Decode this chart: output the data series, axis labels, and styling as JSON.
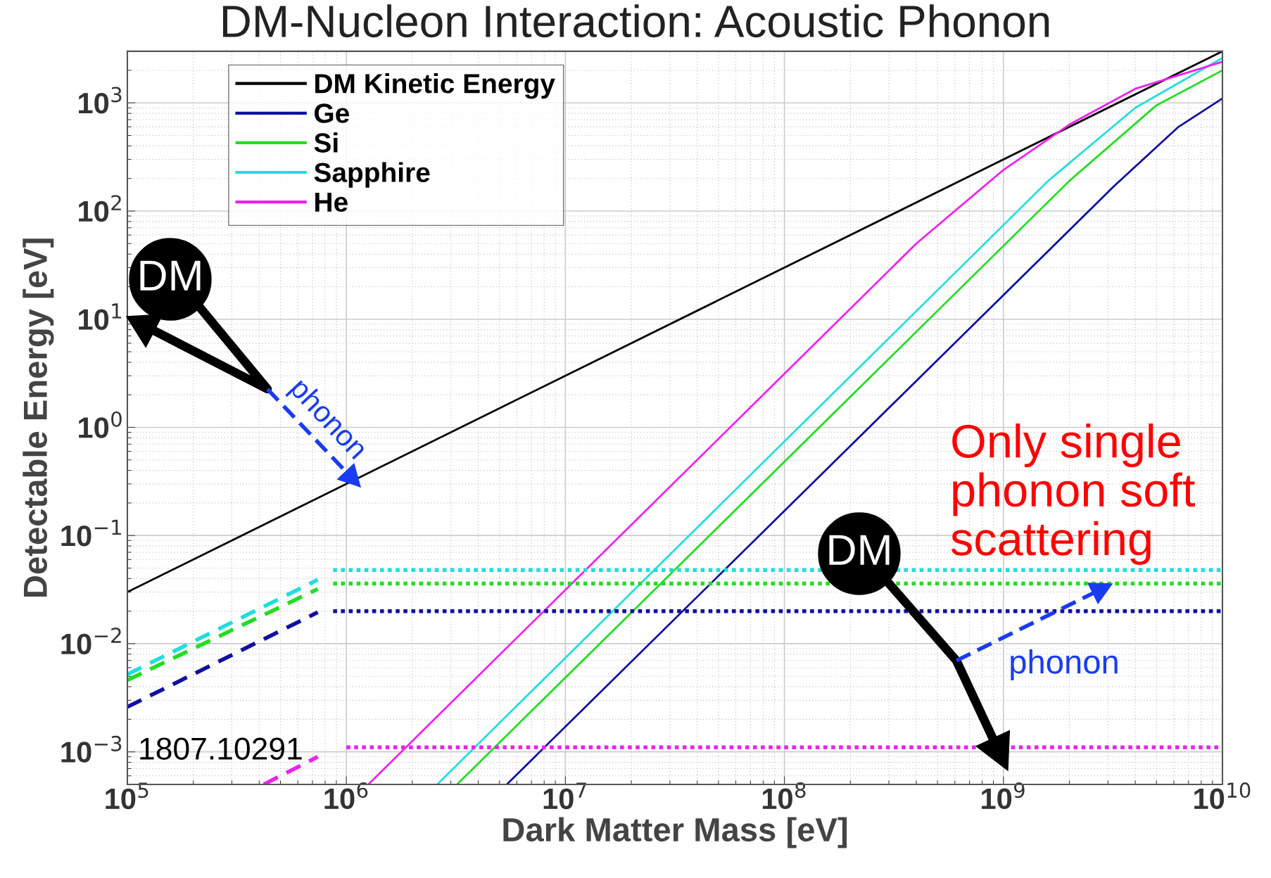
{
  "chart_data": {
    "type": "line",
    "title": "DM-Nucleon Interaction: Acoustic Phonon",
    "xlabel": "Dark Matter Mass [eV]",
    "ylabel": "Detectable Energy [eV]",
    "log": "xy",
    "grid": true,
    "legend": "top left",
    "xlim": [
      100000,
      10000000000
    ],
    "ylim": [
      0.0005,
      3000
    ],
    "xticks": [
      {
        "value": 100000,
        "label": "10$^{5}$"
      },
      {
        "value": 1000000,
        "label": "10$^{6}$"
      },
      {
        "value": 10000000,
        "label": "10$^{7}$"
      },
      {
        "value": 100000000,
        "label": "10$^{8}$"
      },
      {
        "value": 1000000000,
        "label": "10$^{9}$"
      },
      {
        "value": 10000000000,
        "label": "10$^{10}$"
      }
    ],
    "yticks": [
      {
        "value": 0.001,
        "label": "10$^{−3}$"
      },
      {
        "value": 0.01,
        "label": "10$^{−2}$"
      },
      {
        "value": 0.1,
        "label": "10$^{−1}$"
      },
      {
        "value": 1,
        "label": "10$^{0}$"
      },
      {
        "value": 10,
        "label": "10$^{1}$"
      },
      {
        "value": 100,
        "label": "10$^{2}$"
      },
      {
        "value": 1000,
        "label": "10$^{3}$"
      }
    ],
    "annotations": [
      "DM",
      "phonon",
      "DM",
      "phonon",
      "Only single\nphonon soft\nscattering",
      "1807.10291"
    ],
    "series": [
      {
        "name": "DM Kinetic Energy",
        "color": "#000000",
        "line_style": "solid",
        "x": [
          100000,
          10000000000
        ],
        "values": [
          0.03,
          3000
        ]
      },
      {
        "name": "Ge",
        "color": "#1010a0",
        "line_style": "solid",
        "x": [
          5400000,
          3200000000,
          6300000000,
          10000000000
        ],
        "values": [
          0.0005,
          170,
          600,
          1100
        ]
      },
      {
        "name": "Si",
        "color": "#22dd22",
        "line_style": "solid",
        "x": [
          3200000,
          2000000000,
          5000000000,
          10000000000
        ],
        "values": [
          0.0005,
          190,
          950,
          2000
        ]
      },
      {
        "name": "Sapphire",
        "color": "#22dddd",
        "line_style": "solid",
        "x": [
          2600000,
          1600000000,
          4000000000,
          10000000000
        ],
        "values": [
          0.0005,
          190,
          900,
          2600
        ]
      },
      {
        "name": "He",
        "color": "#ee22ee",
        "line_style": "solid",
        "x": [
          1260000,
          400000000,
          1000000000,
          2000000000,
          4000000000,
          10000000000
        ],
        "values": [
          0.0005,
          50,
          240,
          630,
          1350,
          2400
        ]
      },
      {
        "color": "#1010a0",
        "line_style": "dotted",
        "x": [
          870000,
          10000000000
        ],
        "values": [
          0.02,
          0.02
        ]
      },
      {
        "color": "#22dd22",
        "line_style": "dotted",
        "x": [
          870000,
          10000000000
        ],
        "values": [
          0.036,
          0.036
        ]
      },
      {
        "color": "#22dddd",
        "line_style": "dotted",
        "x": [
          870000,
          10000000000
        ],
        "values": [
          0.048,
          0.048
        ]
      },
      {
        "color": "#ee22ee",
        "line_style": "dotted",
        "x": [
          1000000,
          10000000000
        ],
        "values": [
          0.0011,
          0.0011
        ]
      },
      {
        "color": "#1010a0",
        "line_style": "dashed",
        "x": [
          100000,
          740000
        ],
        "values": [
          0.0026,
          0.0195
        ]
      },
      {
        "color": "#22dd22",
        "line_style": "dashed",
        "x": [
          100000,
          740000
        ],
        "values": [
          0.0046,
          0.032
        ]
      },
      {
        "color": "#22dddd",
        "line_style": "dashed",
        "x": [
          100000,
          740000
        ],
        "values": [
          0.0052,
          0.039
        ]
      },
      {
        "color": "#ee22ee",
        "line_style": "dashed",
        "x": [
          420000,
          740000
        ],
        "values": [
          0.0005,
          0.0009
        ]
      }
    ]
  }
}
